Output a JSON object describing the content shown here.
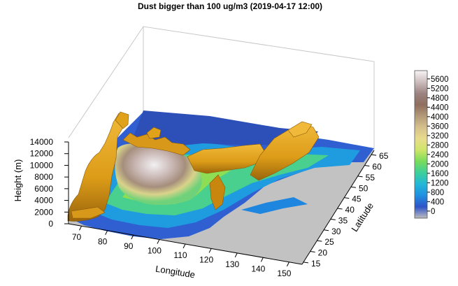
{
  "chart_data": {
    "type": "3d-isosurface",
    "title": "Dust bigger than 100 ug/m3 (2019-04-17 12:00)",
    "x_axis": {
      "label": "Longitude",
      "ticks": [
        70,
        80,
        90,
        100,
        110,
        120,
        130,
        140,
        150
      ],
      "range": [
        65,
        155
      ]
    },
    "y_axis": {
      "label": "Latitude",
      "ticks": [
        15,
        20,
        25,
        30,
        35,
        40,
        45,
        50,
        55,
        60,
        65
      ],
      "range": [
        14,
        67
      ]
    },
    "z_axis": {
      "label": "Height (m)",
      "ticks": [
        0,
        2000,
        4000,
        6000,
        8000,
        10000,
        12000,
        14000
      ],
      "range": [
        0,
        14000
      ]
    },
    "colorbar": {
      "ticks": [
        0,
        400,
        800,
        1200,
        1600,
        2000,
        2400,
        2800,
        3200,
        3600,
        4000,
        4400,
        4800,
        5200,
        5600
      ],
      "range": [
        -300,
        5950
      ],
      "colors": [
        "#bdbdbd",
        "#2f54c8",
        "#1f8fe0",
        "#22b8d8",
        "#3ccf9a",
        "#78dc5a",
        "#cfe56a",
        "#e8dc8c",
        "#d6c08c",
        "#b39a78",
        "#8f6e5e",
        "#9c8482",
        "#cdbdbe",
        "#f7f4f6"
      ]
    },
    "surface_colors": {
      "ground": "#c2c2c2",
      "isosurface": "#e1a41c",
      "isosurface_shadow": "#8f5e0c"
    }
  }
}
